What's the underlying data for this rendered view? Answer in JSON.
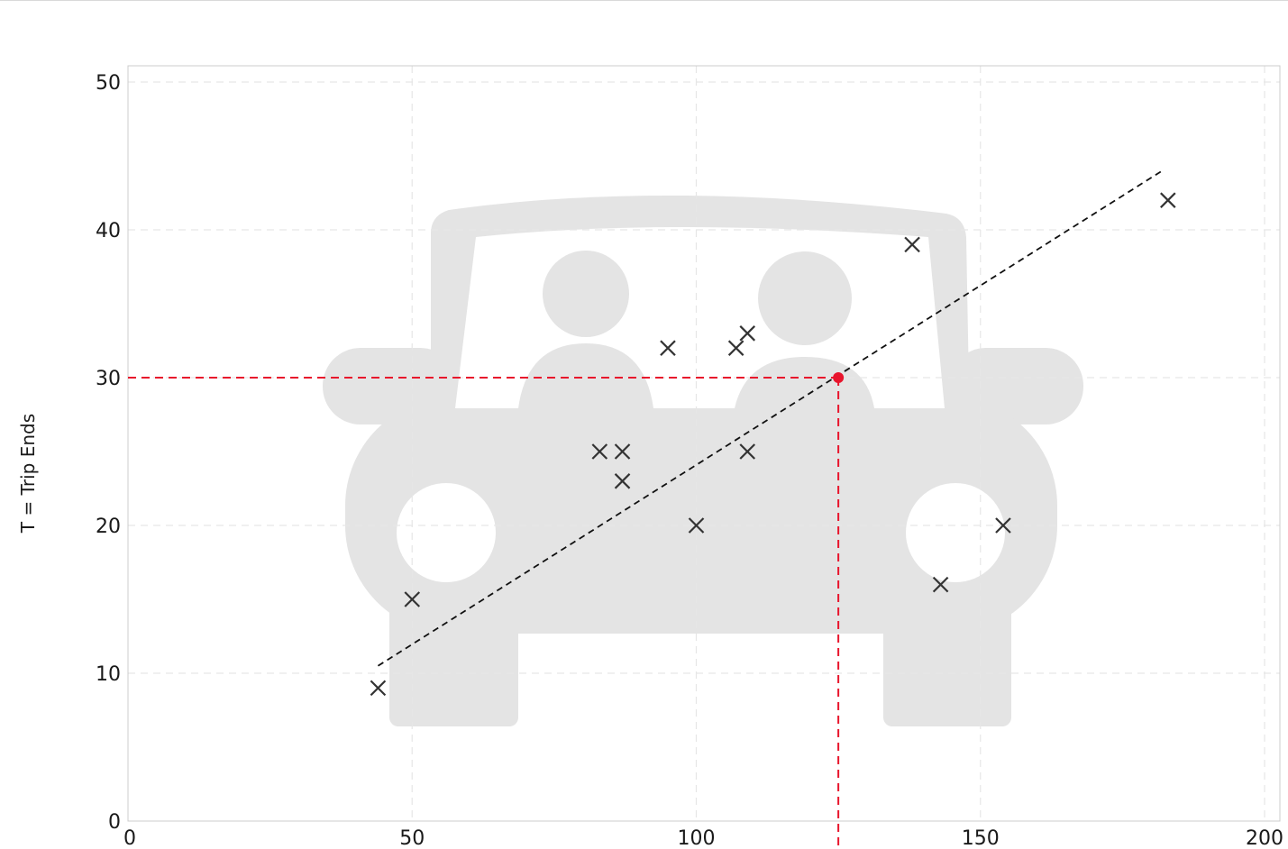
{
  "chart_data": {
    "type": "scatter",
    "title": "",
    "xlabel": "",
    "ylabel": "T = Trip Ends",
    "xlim": [
      0,
      200
    ],
    "ylim": [
      0,
      50
    ],
    "x_ticks": [
      0,
      50,
      100,
      150,
      200
    ],
    "y_ticks": [
      0,
      10,
      20,
      30,
      40,
      50
    ],
    "x_tick_labels": [
      "0",
      "50",
      "100",
      "150",
      "200"
    ],
    "y_tick_labels": [
      "0",
      "10",
      "20",
      "30",
      "40",
      "50"
    ],
    "grid": true,
    "marker": "x",
    "series": [
      {
        "points": [
          {
            "x": 44,
            "y": 9
          },
          {
            "x": 50,
            "y": 15
          },
          {
            "x": 83,
            "y": 25
          },
          {
            "x": 87,
            "y": 25
          },
          {
            "x": 87,
            "y": 23
          },
          {
            "x": 95,
            "y": 32
          },
          {
            "x": 100,
            "y": 20
          },
          {
            "x": 107,
            "y": 32
          },
          {
            "x": 109,
            "y": 33
          },
          {
            "x": 109,
            "y": 25
          },
          {
            "x": 138,
            "y": 39
          },
          {
            "x": 143,
            "y": 16
          },
          {
            "x": 154,
            "y": 20
          },
          {
            "x": 183,
            "y": 42
          }
        ]
      }
    ],
    "trend_line": {
      "style": "dashed",
      "color": "#111111",
      "from": {
        "x": 44,
        "y": 10.5
      },
      "to": {
        "x": 182,
        "y": 44
      }
    },
    "highlight": {
      "x": 125,
      "y": 30,
      "color": "#e8142c",
      "guides": "dashed"
    },
    "background_icon": "car-with-two-people-icon",
    "colors": {
      "marker": "#333333",
      "grid": "#e6e6e6",
      "axis": "#cccccc",
      "icon": "#e4e4e4"
    }
  }
}
